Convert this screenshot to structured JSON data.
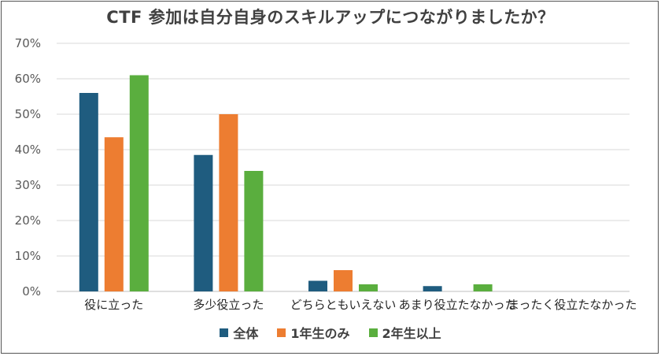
{
  "chart_data": {
    "type": "bar",
    "title": "CTF 参加は自分自身のスキルアップにつながりましたか？",
    "categories": [
      "役に立った",
      "多少役立った",
      "どちらともいえない",
      "あまり役立たなかった",
      "まったく役立たなかった"
    ],
    "series": [
      {
        "name": "全体",
        "color": "#1F5C7F",
        "values": [
          56,
          38.5,
          3,
          1.5,
          0
        ]
      },
      {
        "name": "1年生のみ",
        "color": "#ED7D31",
        "values": [
          43.5,
          50,
          6,
          0,
          0
        ]
      },
      {
        "name": "2年生以上",
        "color": "#5AAE3E",
        "values": [
          61,
          34,
          2,
          2,
          0
        ]
      }
    ],
    "ylim": [
      0,
      70
    ],
    "yticks": [
      "0%",
      "10%",
      "20%",
      "30%",
      "40%",
      "50%",
      "60%",
      "70%"
    ],
    "xlabel": "",
    "ylabel": "",
    "grid": true,
    "legend_position": "bottom"
  }
}
